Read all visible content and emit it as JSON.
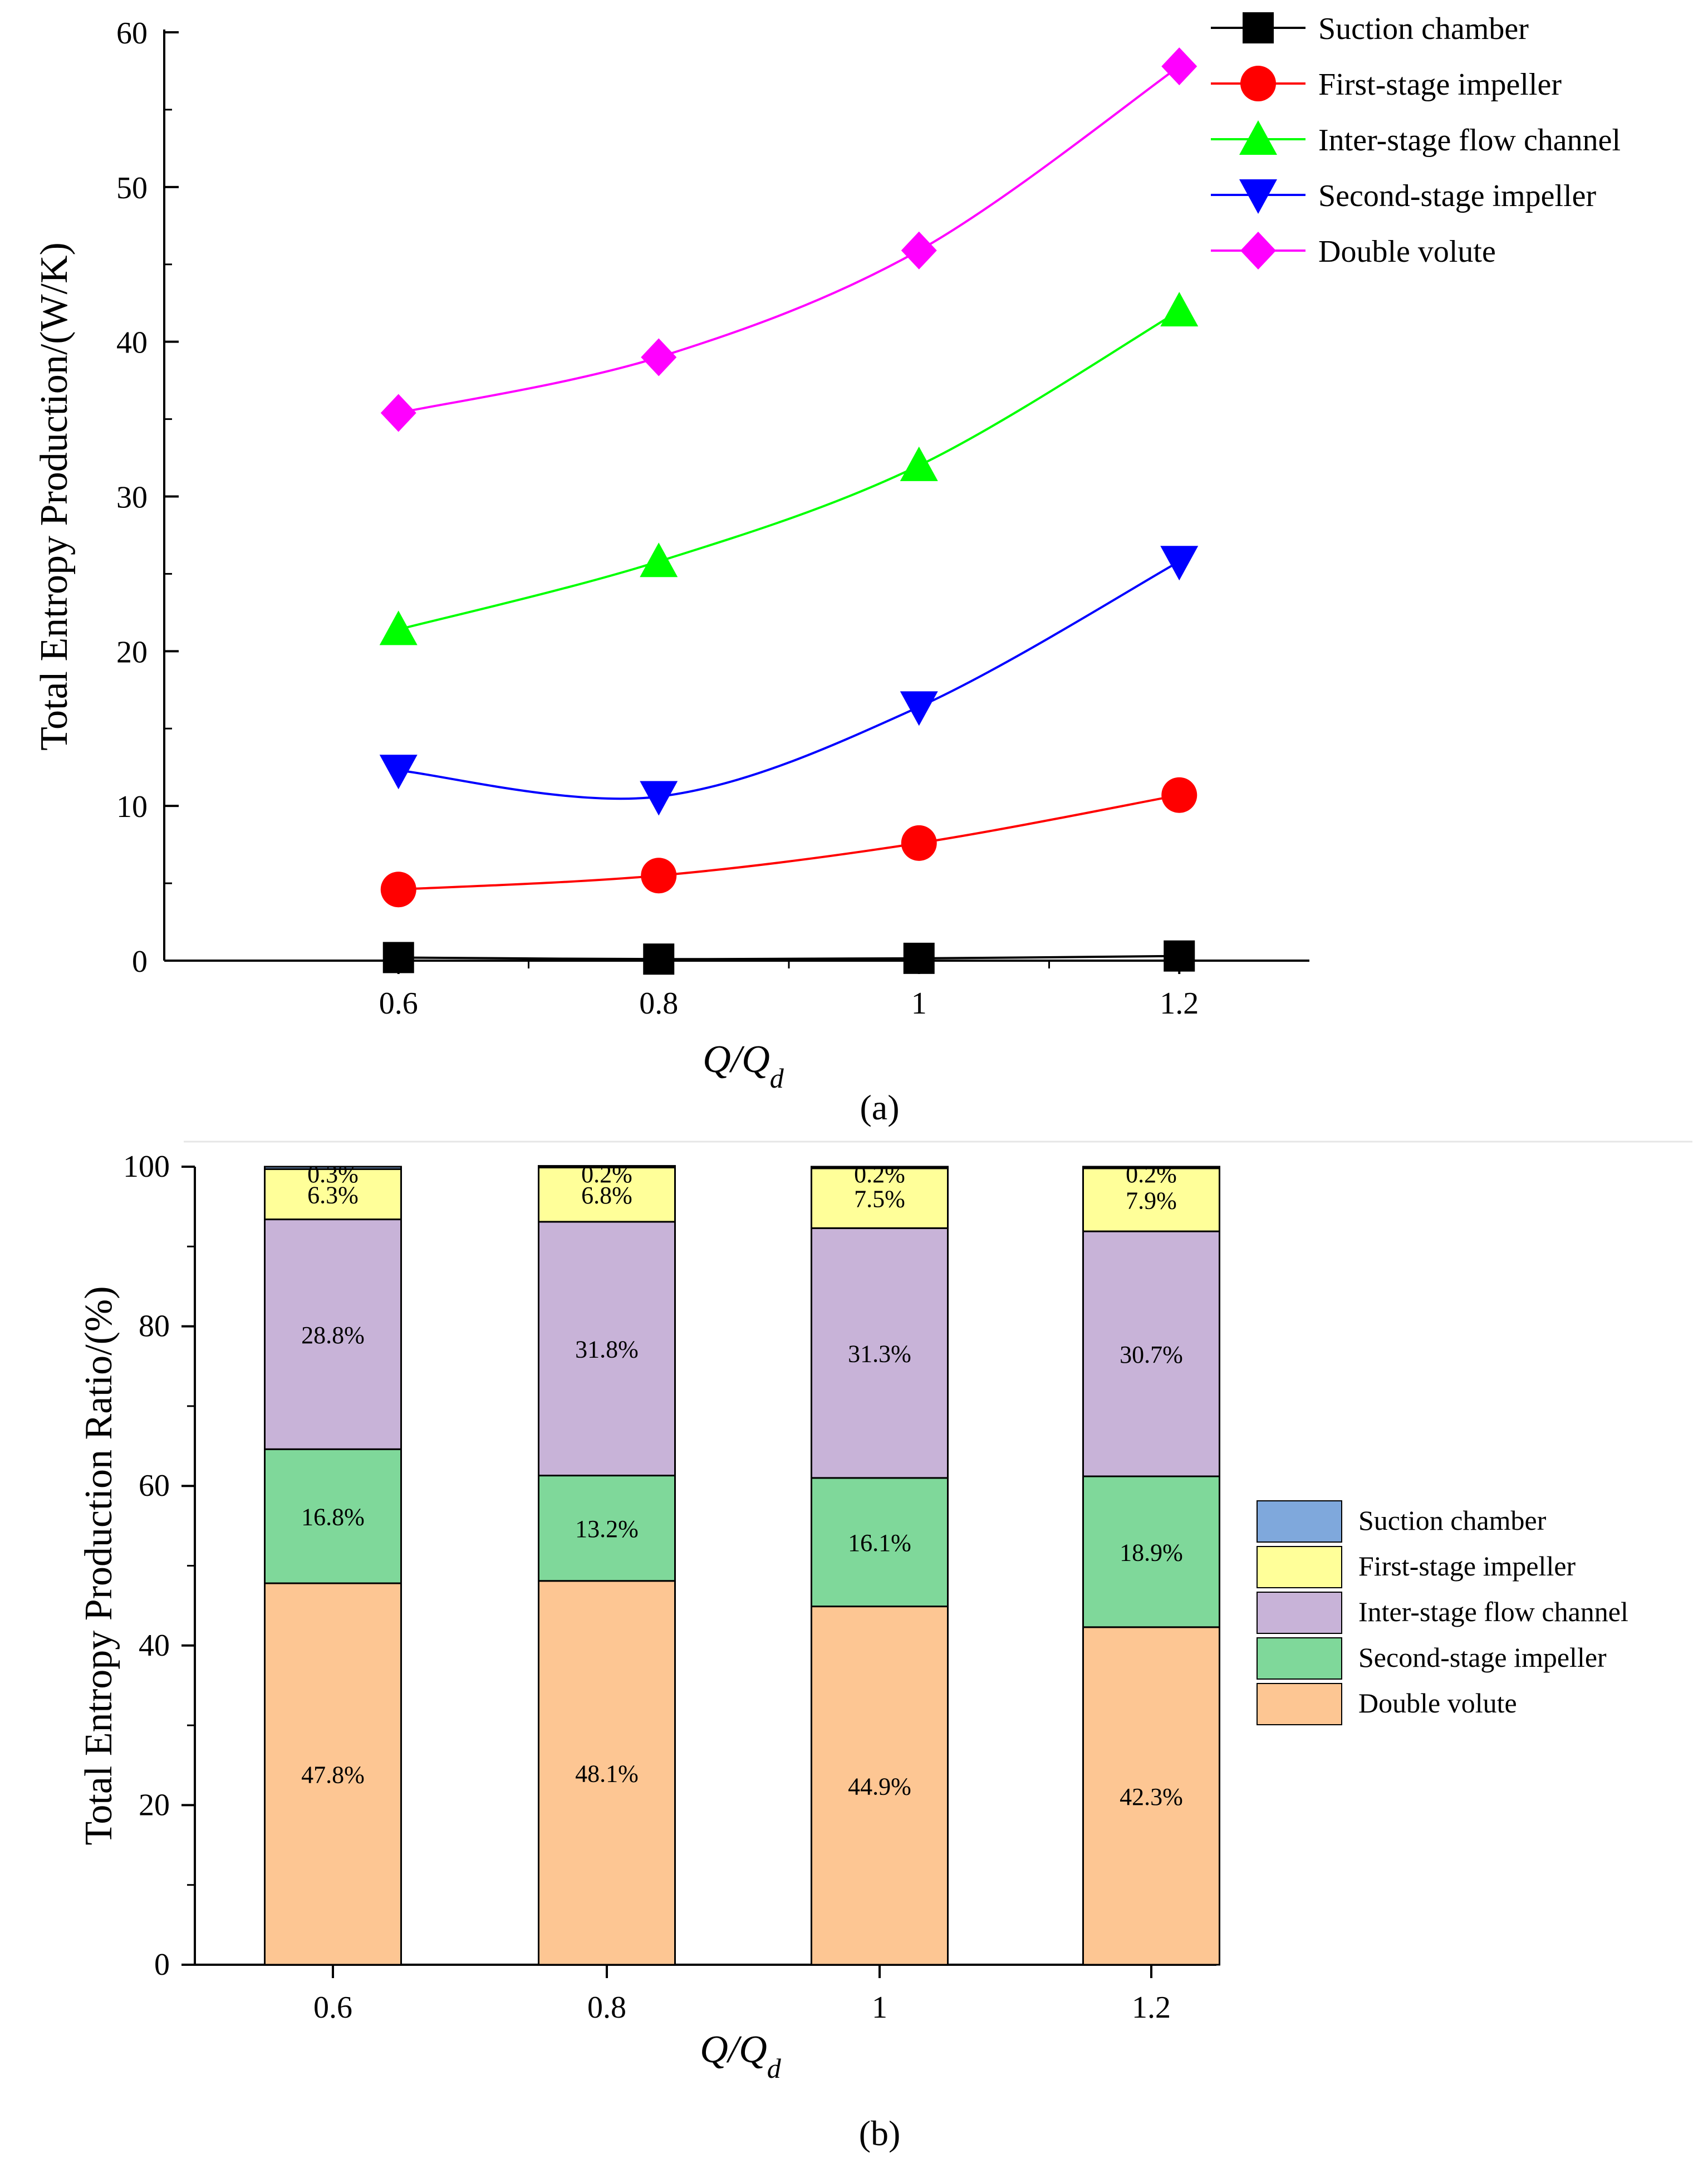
{
  "chart_data": [
    {
      "panel": "a",
      "type": "line",
      "panel_label": "a",
      "x": [
        0.6,
        0.8,
        1,
        1.2
      ],
      "x_tick_labels": [
        "0.6",
        "0.8",
        "1",
        "1.2"
      ],
      "xlim": [
        0.42,
        1.3
      ],
      "ylim": [
        0,
        60
      ],
      "y_ticks": [
        0,
        10,
        20,
        30,
        40,
        50,
        60
      ],
      "xlabel_main": "Q/Q",
      "xlabel_sub": "d",
      "ylabel": "Total Entropy Production/(W/K)",
      "series": [
        {
          "name": "Suction chamber",
          "color": "#000000",
          "marker": "square",
          "values": [
            0.2,
            0.1,
            0.15,
            0.3
          ]
        },
        {
          "name": "First-stage impeller",
          "color": "#ff0000",
          "marker": "circle",
          "values": [
            4.6,
            5.5,
            7.6,
            10.7
          ]
        },
        {
          "name": "Inter-stage flow channel",
          "color": "#00ff00",
          "marker": "triangle-up",
          "values": [
            21.4,
            25.8,
            32.0,
            42.0
          ]
        },
        {
          "name": "Second-stage impeller",
          "color": "#0000ff",
          "marker": "triangle-down",
          "values": [
            12.3,
            10.6,
            16.4,
            25.8
          ]
        },
        {
          "name": "Double volute",
          "color": "#ff00ff",
          "marker": "diamond",
          "values": [
            35.4,
            39.0,
            45.9,
            57.8
          ]
        }
      ]
    },
    {
      "panel": "b",
      "type": "bar",
      "stacked": true,
      "panel_label": "b",
      "categories": [
        "0.6",
        "0.8",
        "1",
        "1.2"
      ],
      "ylim": [
        0,
        100
      ],
      "y_ticks": [
        0,
        20,
        40,
        60,
        80,
        100
      ],
      "xlabel_main": "Q/Q",
      "xlabel_sub": "d",
      "ylabel": "Total Entropy Production Ratio/(%)",
      "series": [
        {
          "name": "Double volute",
          "color": "#fdc693",
          "values": [
            47.8,
            48.1,
            44.9,
            42.3
          ],
          "labels": [
            "47.8%",
            "48.1%",
            "44.9%",
            "42.3%"
          ]
        },
        {
          "name": "Second-stage impeller",
          "color": "#7fd89a",
          "values": [
            16.8,
            13.2,
            16.1,
            18.9
          ],
          "labels": [
            "16.8%",
            "13.2%",
            "16.1%",
            "18.9%"
          ]
        },
        {
          "name": "Inter-stage flow channel",
          "color": "#c8b3d8",
          "values": [
            28.8,
            31.8,
            31.3,
            30.7
          ],
          "labels": [
            "28.8%",
            "31.8%",
            "31.3%",
            "30.7%"
          ]
        },
        {
          "name": "First-stage impeller",
          "color": "#ffff99",
          "values": [
            6.3,
            6.8,
            7.5,
            7.9
          ],
          "labels": [
            "6.3%",
            "6.8%",
            "7.5%",
            "7.9%"
          ]
        },
        {
          "name": "Suction chamber",
          "color": "#7fa8dc",
          "values": [
            0.3,
            0.2,
            0.2,
            0.2
          ],
          "labels": [
            "0.3%",
            "0.2%",
            "0.2%",
            "0.2%"
          ]
        }
      ],
      "legend_order": [
        "Suction chamber",
        "First-stage impeller",
        "Inter-stage flow channel",
        "Second-stage impeller",
        "Double volute"
      ]
    }
  ]
}
